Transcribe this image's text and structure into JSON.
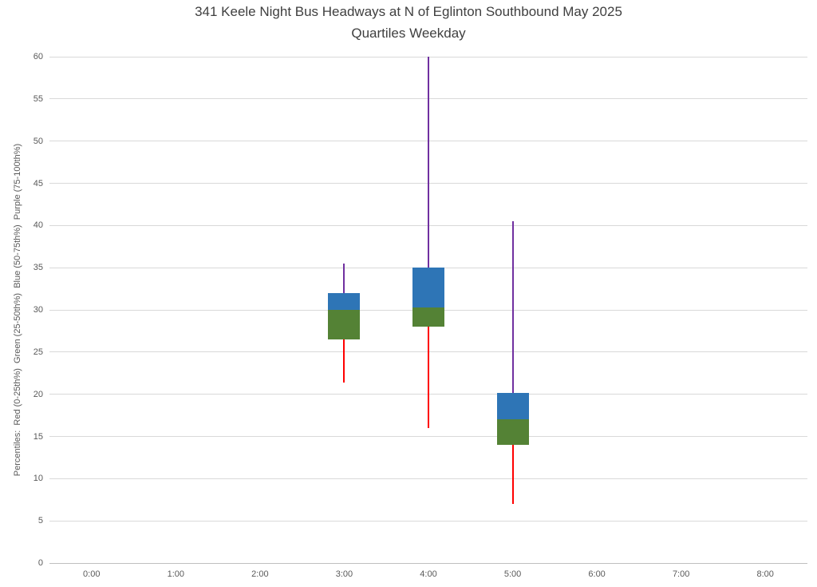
{
  "chart_data": {
    "type": "boxplot",
    "title": "341 Keele Night Bus Headways at N of Eglinton Southbound May 2025",
    "subtitle": "Quartiles Weekday",
    "xlabel": "",
    "ylabel": "Percentiles:  Red (0-25th%)  Green (25-50th%)  Blue (50-75th%)  Purple (75-100th%)",
    "x_categories": [
      "0:00",
      "1:00",
      "2:00",
      "3:00",
      "4:00",
      "5:00",
      "6:00",
      "7:00",
      "8:00"
    ],
    "y_ticks": [
      0,
      5,
      10,
      15,
      20,
      25,
      30,
      35,
      40,
      45,
      50,
      55,
      60
    ],
    "ylim": [
      0,
      60
    ],
    "grid": "horizontal",
    "legend": "none",
    "colors": {
      "p0_25_red": "#FF0000",
      "p25_50_green": "#548235",
      "p50_75_blue": "#2E75B6",
      "p75_100_purple": "#7030A0",
      "gridline": "#D9D9D9",
      "axis_line": "#BFBFBF",
      "tick_text": "#595959",
      "title_text": "#3F3F3F"
    },
    "series": [
      {
        "category": "3:00",
        "p0": 21.4,
        "p25": 26.5,
        "p50": 30.0,
        "p75": 32.0,
        "p100": 35.5
      },
      {
        "category": "4:00",
        "p0": 16.0,
        "p25": 28.0,
        "p50": 30.3,
        "p75": 35.0,
        "p100": 60.0
      },
      {
        "category": "5:00",
        "p0": 7.0,
        "p25": 14.0,
        "p50": 17.0,
        "p75": 20.2,
        "p100": 40.5
      }
    ]
  }
}
